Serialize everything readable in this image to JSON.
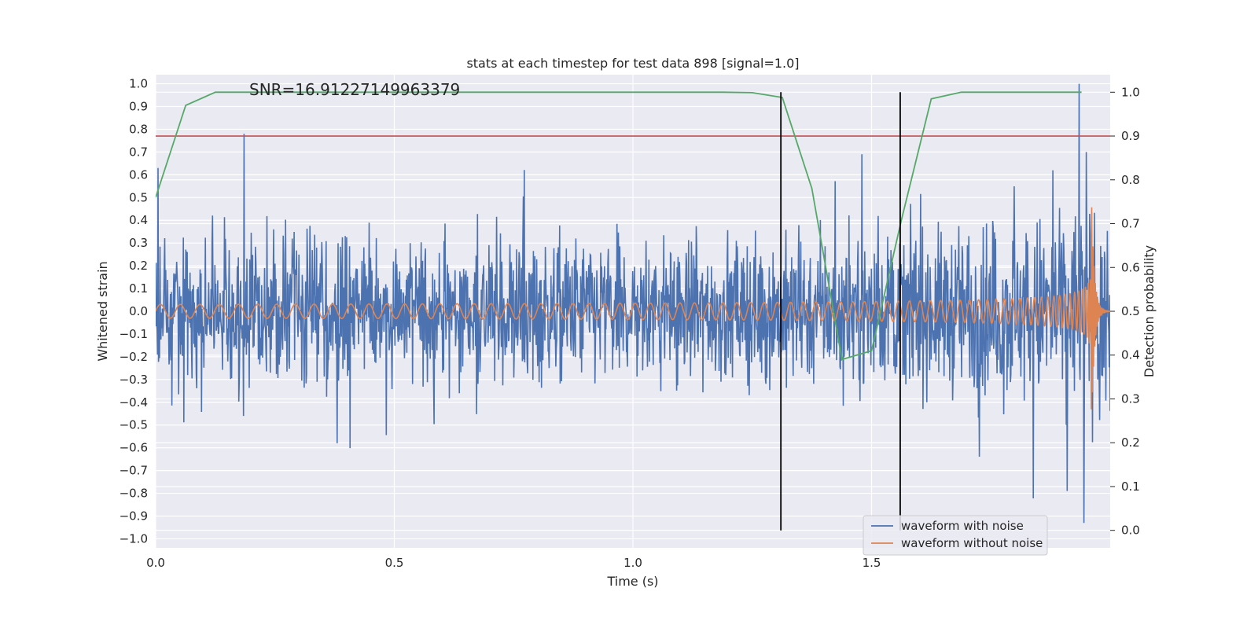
{
  "chart_data": {
    "type": "line",
    "title": "stats at each timestep for test data 898 [signal=1.0]",
    "annotation": "SNR=16.91227149963379",
    "xlabel": "Time (s)",
    "ylabel_left": "Whitened strain",
    "ylabel_right": "Detection probability",
    "xlim": [
      0.0,
      2.0
    ],
    "ylim_left": [
      -1.04,
      1.04
    ],
    "ylim_right": [
      -0.04,
      1.04
    ],
    "x_ticks": [
      "0.0",
      "0.5",
      "1.0",
      "1.5"
    ],
    "y_ticks_left": [
      "1.0",
      "0.9",
      "0.8",
      "0.7",
      "0.6",
      "0.5",
      "0.4",
      "0.3",
      "0.2",
      "0.1",
      "0.0",
      "−0.1",
      "−0.2",
      "−0.3",
      "−0.4",
      "−0.5",
      "−0.6",
      "−0.7",
      "−0.8",
      "−0.9",
      "−1.0"
    ],
    "y_ticks_right": [
      "1.0",
      "0.9",
      "0.8",
      "0.7",
      "0.6",
      "0.5",
      "0.4",
      "0.3",
      "0.2",
      "0.1",
      "0.0"
    ],
    "grid": true,
    "legend_position": "lower-right",
    "series": [
      {
        "name": "waveform with noise",
        "axis": "left",
        "color": "#4c72b0",
        "kind": "noise",
        "duration": 2.0,
        "n_points": 2000,
        "typical_range": [
          -0.5,
          0.5
        ],
        "spikes": [
          {
            "x": 0.005,
            "y": 0.63
          },
          {
            "x": 0.185,
            "y": 0.78
          },
          {
            "x": 0.38,
            "y": -0.58
          },
          {
            "x": 1.48,
            "y": 0.69
          },
          {
            "x": 1.88,
            "y": 0.62
          },
          {
            "x": 1.91,
            "y": -0.79
          },
          {
            "x": 1.935,
            "y": 1.0
          },
          {
            "x": 1.945,
            "y": -0.93
          },
          {
            "x": 1.95,
            "y": 0.7
          }
        ]
      },
      {
        "name": "waveform without noise",
        "axis": "left",
        "color": "#dd8452",
        "kind": "chirp",
        "duration": 2.0,
        "merger_time": 1.96,
        "start_amplitude": 0.03,
        "peak_amplitude": 0.57,
        "start_frequency_hz": 24
      },
      {
        "name": "detection probability",
        "axis": "right",
        "color": "#55a868",
        "x": [
          0.0,
          0.063,
          0.125,
          0.188,
          0.25,
          0.5,
          0.75,
          1.0,
          1.188,
          1.25,
          1.313,
          1.375,
          1.438,
          1.5,
          1.563,
          1.625,
          1.688,
          1.75,
          1.813,
          1.875,
          1.94
        ],
        "y": [
          0.76,
          0.97,
          1.0,
          1.0,
          1.0,
          1.0,
          1.0,
          1.0,
          1.0,
          0.999,
          0.988,
          0.78,
          0.39,
          0.41,
          0.71,
          0.985,
          1.0,
          1.0,
          1.0,
          1.0,
          1.0
        ]
      }
    ],
    "threshold": {
      "axis": "right",
      "y": 0.9,
      "color": "#c44e52"
    },
    "vertical_markers": {
      "x": [
        1.31,
        1.56
      ],
      "y_range": [
        0.0,
        1.0
      ],
      "axis": "right",
      "color": "#000000"
    },
    "colors": {
      "axes_bg": "#eaeaf2",
      "grid": "#ffffff",
      "text": "#262626"
    }
  }
}
